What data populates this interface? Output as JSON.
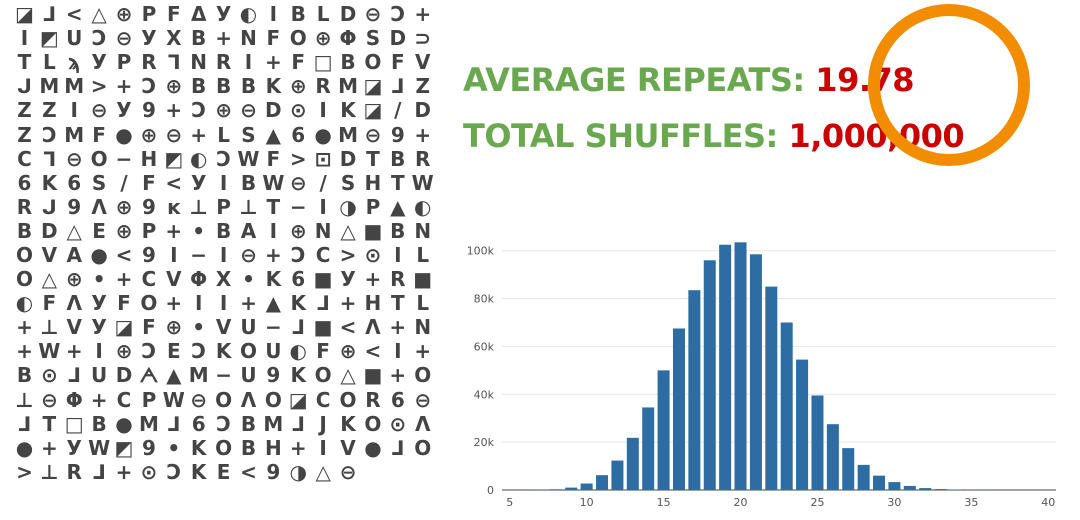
{
  "cipher": {
    "rows": [
      "◪⅃<△⊕PFΔУ◐IBLD⊖Ↄ+",
      "I◩UↃ⊖УXB+NFO⊕ΦSD⊃",
      "TLϡУPR⅂NRI+F□BOFV",
      "ᒍMM>+Ↄ⊕BBBK⊕RM◪⅃Z",
      "ZZI⊖У9+Ↄ⊕⊖D⊙IK◪/D",
      "ZↃMF●⊕⊖+LS▲6●M⊖9",
      "+C⅂⊖O−H◩◐ↃWF>⊡DT",
      "BR6K6S/F<УIBW⊖/SH",
      "TWRᒍ9Λ⊕9ᴋ⊥P⊥T−I◑P▲◐",
      "BD△E⊕P+•BAI⊕N△■BN",
      "OVA●<9I−I⊖+ↃC>⊙IL",
      "O△⊕•+CVΦX•K6■У+R■",
      "◐FΛУFO+II+▲K⅃+HT",
      "L+⊥VУ◪F⊕•VU−⅃■<Λ",
      "+N+W+I⊕ↃEↃKOU◐F⊕<",
      "I+B⊙⅃UDᗅ▲M−U9KO△■",
      "+O⊥⊖Φ+CPW⊖OΛO◪COR",
      "6⊖⅃T□B●M⅃6ↃBM⅃JKO",
      "⊙Λ●+УW◩9•KOBH+IV",
      "●⅃O>⊥R⅃+⊙ↃKE<9◑△⊖"
    ]
  },
  "stats": {
    "average_label": "AVERAGE REPEATS: ",
    "average_value": "19.78",
    "total_label": "TOTAL SHUFFLES: ",
    "total_value": "1,000,000"
  },
  "colors": {
    "label": "#6aa84f",
    "value": "#cc0000",
    "ring": "#f28c00",
    "bar": "#2e6da4"
  },
  "chart_data": {
    "type": "bar",
    "title": "",
    "xlabel": "",
    "ylabel": "",
    "x": [
      5,
      6,
      7,
      8,
      9,
      10,
      11,
      12,
      13,
      14,
      15,
      16,
      17,
      18,
      19,
      20,
      21,
      22,
      23,
      24,
      25,
      26,
      27,
      28,
      29,
      30,
      31,
      32,
      33,
      34,
      35,
      36,
      37,
      38,
      39
    ],
    "values": [
      0,
      0,
      100,
      300,
      1000,
      2700,
      6200,
      12300,
      21800,
      34500,
      50000,
      67500,
      83500,
      96000,
      102500,
      103500,
      98500,
      85000,
      70000,
      54500,
      39500,
      27500,
      17500,
      10500,
      6000,
      3300,
      1700,
      800,
      400,
      200,
      100,
      50,
      20,
      10,
      5
    ],
    "xlim": [
      4.5,
      40.5
    ],
    "xticks": [
      5,
      10,
      15,
      20,
      25,
      30,
      35,
      40
    ],
    "ylim": [
      0,
      112000
    ],
    "yticks": [
      0,
      20000,
      40000,
      60000,
      80000,
      100000
    ],
    "ytick_labels": [
      "0",
      "20k",
      "40k",
      "60k",
      "80k",
      "100k"
    ],
    "grid": true,
    "legend": "none"
  }
}
